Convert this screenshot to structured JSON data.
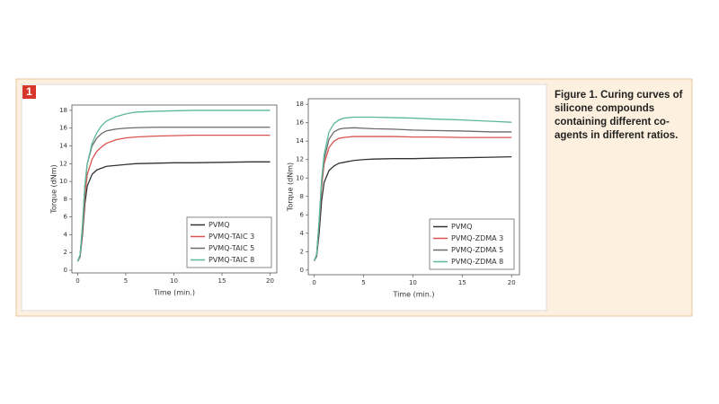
{
  "figure_number": "1",
  "caption": "Figure 1. Curing curves of silicone compounds containing different co-agents in different ratios.",
  "chart_data": [
    {
      "type": "line",
      "xlabel": "Time (min.)",
      "ylabel": "Torque (dNm)",
      "x": [
        0,
        0.25,
        0.5,
        0.75,
        1,
        1.5,
        2,
        2.5,
        3,
        4,
        5,
        6,
        8,
        10,
        12,
        15,
        18,
        20
      ],
      "xlim": [
        -0.6,
        20.7
      ],
      "xticks": [
        0,
        5,
        10,
        15,
        20
      ],
      "ylim": [
        -0.3,
        18.6
      ],
      "yticks": [
        0,
        2,
        4,
        6,
        8,
        10,
        12,
        14,
        16,
        18
      ],
      "legend": "lower right",
      "series": [
        {
          "name": "PVMQ",
          "color": "#333333",
          "values": [
            1,
            1.5,
            4,
            7.5,
            9.5,
            10.8,
            11.3,
            11.5,
            11.7,
            11.8,
            11.9,
            12,
            12.05,
            12.1,
            12.1,
            12.15,
            12.2,
            12.2
          ]
        },
        {
          "name": "PVMQ-TAIC 3",
          "color": "#d9534f",
          "values": [
            1,
            1.6,
            4.5,
            8.5,
            10.8,
            12.5,
            13.4,
            13.9,
            14.3,
            14.7,
            14.9,
            15,
            15.1,
            15.15,
            15.2,
            15.2,
            15.2,
            15.2
          ]
        },
        {
          "name": "PVMQ-TAIC 5",
          "color": "#6b6b6b",
          "values": [
            1,
            1.7,
            5,
            9.5,
            12,
            14,
            14.9,
            15.4,
            15.7,
            15.9,
            16,
            16.05,
            16.1,
            16.1,
            16.1,
            16.1,
            16.1,
            16.1
          ]
        },
        {
          "name": "PVMQ-TAIC 8",
          "color": "#5cb89a",
          "values": [
            1,
            1.7,
            5,
            9.5,
            12,
            14.3,
            15.5,
            16.3,
            16.8,
            17.3,
            17.6,
            17.8,
            17.9,
            17.95,
            18,
            18,
            18,
            18
          ]
        }
      ]
    },
    {
      "type": "line",
      "xlabel": "Time (min.)",
      "ylabel": "Torque (dNm)",
      "x": [
        0,
        0.25,
        0.5,
        0.75,
        1,
        1.5,
        2,
        2.5,
        3,
        4,
        5,
        6,
        8,
        10,
        12,
        15,
        18,
        20
      ],
      "xlim": [
        -0.6,
        20.8
      ],
      "xticks": [
        0,
        5,
        10,
        15,
        20
      ],
      "ylim": [
        -0.5,
        18.6
      ],
      "yticks": [
        0,
        2,
        4,
        6,
        8,
        10,
        12,
        14,
        16,
        18
      ],
      "legend": "lower right",
      "series": [
        {
          "name": "PVMQ",
          "color": "#333333",
          "values": [
            1,
            1.5,
            4,
            7.5,
            9.5,
            10.8,
            11.3,
            11.6,
            11.7,
            11.9,
            12,
            12.05,
            12.1,
            12.1,
            12.15,
            12.2,
            12.25,
            12.3
          ]
        },
        {
          "name": "PVMQ-ZDMA 3",
          "color": "#d9534f",
          "values": [
            1,
            1.6,
            5,
            9,
            11.5,
            13.3,
            14,
            14.3,
            14.4,
            14.5,
            14.5,
            14.5,
            14.5,
            14.45,
            14.45,
            14.4,
            14.4,
            14.4
          ]
        },
        {
          "name": "PVMQ-ZDMA 5",
          "color": "#6b6b6b",
          "values": [
            1,
            1.7,
            5.2,
            9.5,
            12,
            14.2,
            15,
            15.3,
            15.4,
            15.45,
            15.4,
            15.35,
            15.3,
            15.2,
            15.15,
            15.1,
            15,
            15
          ]
        },
        {
          "name": "PVMQ-ZDMA 8",
          "color": "#5cb89a",
          "values": [
            1,
            1.7,
            5.3,
            9.8,
            12.5,
            15,
            15.9,
            16.3,
            16.5,
            16.6,
            16.6,
            16.6,
            16.55,
            16.5,
            16.4,
            16.3,
            16.15,
            16.05
          ]
        }
      ]
    }
  ]
}
